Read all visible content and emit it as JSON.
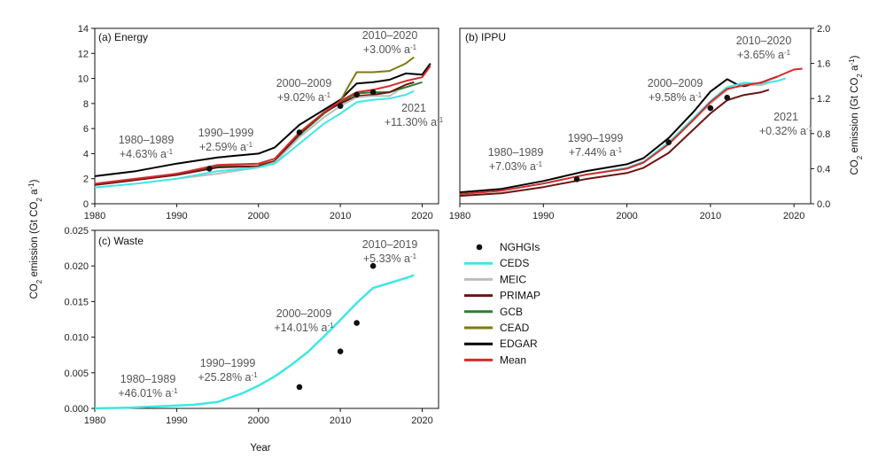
{
  "colors": {
    "NGHGIs": "#111111",
    "CEDS": "#3ee6e6",
    "MEIC": "#bdbdbd",
    "PRIMAP": "#6b1414",
    "GCB": "#2e7d32",
    "CEAD": "#7d7a10",
    "EDGAR": "#000000",
    "Mean": "#d62a2a"
  },
  "legend": [
    "NGHGIs",
    "CEDS",
    "MEIC",
    "PRIMAP",
    "GCB",
    "CEAD",
    "EDGAR",
    "Mean"
  ],
  "axis_labels": {
    "left_prefix": "CO",
    "left_sub": "2",
    "left_mid": " emission (Gt CO",
    "left_sub2": "2",
    "left_unit": " a",
    "left_sup": "-1",
    "left_end": ")",
    "right_prefix": "CO",
    "right_sub": "2",
    "right_mid": " emission (Gt CO",
    "right_sub2": "2",
    "right_unit": " a",
    "right_sup": "-1",
    "right_end": ")",
    "x": "Year"
  },
  "chart_data": [
    {
      "id": "energy",
      "type": "line",
      "title": "(a) Energy",
      "xlim": [
        1980,
        2022
      ],
      "ylim": [
        0,
        14
      ],
      "xticks": [
        1980,
        1990,
        2000,
        2010,
        2020
      ],
      "yticks": [
        "0",
        "2",
        "4",
        "6",
        "8",
        "10",
        "12",
        "14"
      ],
      "annotations": [
        {
          "line1": "1980–1989",
          "line2": "+4.63% a",
          "sup": "-1"
        },
        {
          "line1": "1990–1999",
          "line2": "+2.59% a",
          "sup": "-1"
        },
        {
          "line1": "2000–2009",
          "line2": "+9.02% a",
          "sup": "-1"
        },
        {
          "line1": "2010–2020",
          "line2": "+3.00% a",
          "sup": "-1"
        },
        {
          "line1": "2021",
          "line2": "+11.30% a",
          "sup": "-1"
        }
      ],
      "series": [
        {
          "name": "EDGAR",
          "x": [
            1980,
            1985,
            1990,
            1995,
            2000,
            2002,
            2005,
            2008,
            2010,
            2012,
            2014,
            2016,
            2018,
            2020,
            2021
          ],
          "values": [
            2.2,
            2.6,
            3.2,
            3.7,
            4.0,
            4.5,
            6.3,
            7.5,
            8.3,
            9.6,
            9.7,
            9.9,
            10.4,
            10.3,
            11.2
          ]
        },
        {
          "name": "CEAD",
          "x": [
            2000,
            2002,
            2005,
            2008,
            2010,
            2011,
            2012,
            2014,
            2016,
            2018,
            2019
          ],
          "values": [
            3.1,
            3.4,
            5.6,
            7.2,
            8.2,
            9.4,
            10.5,
            10.5,
            10.6,
            11.2,
            11.7
          ]
        },
        {
          "name": "GCB",
          "x": [
            1980,
            1985,
            1990,
            1995,
            2000,
            2002,
            2005,
            2008,
            2010,
            2012,
            2014,
            2016,
            2018,
            2020
          ],
          "values": [
            1.5,
            1.9,
            2.4,
            3.0,
            3.0,
            3.4,
            5.5,
            7.2,
            8.1,
            8.8,
            8.9,
            8.9,
            9.3,
            9.7
          ]
        },
        {
          "name": "PRIMAP",
          "x": [
            1980,
            1985,
            1990,
            1995,
            2000,
            2002,
            2005,
            2008,
            2010,
            2012,
            2014,
            2016,
            2018,
            2019
          ],
          "values": [
            1.5,
            1.9,
            2.3,
            2.9,
            3.0,
            3.4,
            5.6,
            7.3,
            8.0,
            8.6,
            8.7,
            8.9,
            9.5,
            9.7
          ]
        },
        {
          "name": "MEIC",
          "x": [
            1990,
            1995,
            2000,
            2002,
            2005,
            2008,
            2010,
            2012,
            2014,
            2016,
            2017
          ],
          "values": [
            2.0,
            2.4,
            2.9,
            3.3,
            5.3,
            6.9,
            7.8,
            8.5,
            8.6,
            8.6,
            9.0
          ]
        },
        {
          "name": "CEDS",
          "x": [
            1980,
            1985,
            1990,
            1995,
            2000,
            2002,
            2005,
            2008,
            2010,
            2012,
            2014,
            2016,
            2018,
            2019
          ],
          "values": [
            1.3,
            1.6,
            2.0,
            2.6,
            2.9,
            3.2,
            4.8,
            6.4,
            7.2,
            8.1,
            8.3,
            8.4,
            8.7,
            9.0
          ]
        },
        {
          "name": "Mean",
          "x": [
            1980,
            1985,
            1990,
            1995,
            2000,
            2002,
            2005,
            2008,
            2010,
            2012,
            2014,
            2016,
            2018,
            2020,
            2021
          ],
          "values": [
            1.6,
            2.0,
            2.4,
            3.1,
            3.2,
            3.6,
            5.7,
            7.3,
            8.2,
            8.9,
            9.1,
            9.4,
            9.8,
            10.1,
            11.0
          ]
        }
      ],
      "ngh_points": [
        [
          1994,
          2.8
        ],
        [
          2005,
          5.7
        ],
        [
          2010,
          7.8
        ],
        [
          2012,
          8.7
        ],
        [
          2014,
          8.9
        ]
      ]
    },
    {
      "id": "ippu",
      "type": "line",
      "title": "(b) IPPU",
      "xlim": [
        1980,
        2022
      ],
      "ylim": [
        0,
        2.0
      ],
      "xticks": [
        1980,
        1990,
        2000,
        2010,
        2020
      ],
      "yticks": [
        "0.0",
        "0.4",
        "0.8",
        "1.2",
        "1.6",
        "2.0"
      ],
      "annotations": [
        {
          "line1": "1980–1989",
          "line2": "+7.03% a",
          "sup": "-1"
        },
        {
          "line1": "1990–1999",
          "line2": "+7.44% a",
          "sup": "-1"
        },
        {
          "line1": "2000–2009",
          "line2": "+9.58% a",
          "sup": "-1"
        },
        {
          "line1": "2010–2020",
          "line2": "+3.65% a",
          "sup": "-1"
        },
        {
          "line1": "2021",
          "line2": "+0.32% a",
          "sup": "-1"
        }
      ],
      "series": [
        {
          "name": "EDGAR",
          "x": [
            1980,
            1985,
            1990,
            1995,
            2000,
            2002,
            2005,
            2008,
            2010,
            2012,
            2013,
            2014,
            2016,
            2018
          ],
          "values": [
            0.13,
            0.17,
            0.26,
            0.37,
            0.45,
            0.52,
            0.75,
            1.05,
            1.28,
            1.42,
            1.37,
            1.34,
            1.38,
            1.45
          ]
        },
        {
          "name": "CEDS",
          "x": [
            1980,
            1985,
            1990,
            1995,
            2000,
            2002,
            2005,
            2008,
            2010,
            2012,
            2014,
            2016,
            2018,
            2019
          ],
          "values": [
            0.11,
            0.15,
            0.23,
            0.33,
            0.41,
            0.48,
            0.7,
            0.98,
            1.17,
            1.33,
            1.38,
            1.37,
            1.4,
            1.43
          ]
        },
        {
          "name": "MEIC",
          "x": [
            2005,
            2008,
            2010,
            2012,
            2014,
            2016,
            2017
          ],
          "values": [
            0.68,
            0.96,
            1.14,
            1.3,
            1.36,
            1.35,
            1.38
          ]
        },
        {
          "name": "PRIMAP",
          "x": [
            1980,
            1985,
            1990,
            1995,
            2000,
            2002,
            2005,
            2008,
            2010,
            2012,
            2014,
            2016,
            2017
          ],
          "values": [
            0.09,
            0.12,
            0.19,
            0.28,
            0.35,
            0.41,
            0.58,
            0.85,
            1.03,
            1.18,
            1.24,
            1.27,
            1.3
          ]
        },
        {
          "name": "Mean",
          "x": [
            1980,
            1985,
            1990,
            1995,
            2000,
            2002,
            2005,
            2008,
            2010,
            2012,
            2014,
            2016,
            2018,
            2020,
            2021
          ],
          "values": [
            0.11,
            0.15,
            0.23,
            0.33,
            0.4,
            0.47,
            0.68,
            0.96,
            1.16,
            1.31,
            1.35,
            1.38,
            1.45,
            1.53,
            1.54
          ]
        }
      ],
      "ngh_points": [
        [
          1994,
          0.28
        ],
        [
          2005,
          0.7
        ],
        [
          2010,
          1.09
        ],
        [
          2012,
          1.21
        ]
      ]
    },
    {
      "id": "waste",
      "type": "line",
      "title": "(c) Waste",
      "xlim": [
        1980,
        2022
      ],
      "ylim": [
        0,
        0.025
      ],
      "xticks": [
        1980,
        1990,
        2000,
        2010,
        2020
      ],
      "yticks": [
        "0.000",
        "0.005",
        "0.010",
        "0.015",
        "0.020",
        "0.025"
      ],
      "annotations": [
        {
          "line1": "1980–1989",
          "line2": "+46.01% a",
          "sup": "-1"
        },
        {
          "line1": "1990–1999",
          "line2": "+25.28% a",
          "sup": "-1"
        },
        {
          "line1": "2000–2009",
          "line2": "+14.01% a",
          "sup": "-1"
        },
        {
          "line1": "2010–2019",
          "line2": "+5.33% a",
          "sup": "-1"
        }
      ],
      "series": [
        {
          "name": "CEDS",
          "x": [
            1980,
            1984,
            1988,
            1992,
            1995,
            1998,
            2000,
            2002,
            2004,
            2006,
            2008,
            2010,
            2012,
            2014,
            2016,
            2018,
            2019
          ],
          "values": [
            0.0,
            0.0001,
            0.0003,
            0.0005,
            0.0009,
            0.0021,
            0.0032,
            0.0045,
            0.0061,
            0.0079,
            0.0101,
            0.0124,
            0.0148,
            0.0169,
            0.0176,
            0.0183,
            0.0187
          ]
        }
      ],
      "ngh_points": [
        [
          2005,
          0.003
        ],
        [
          2010,
          0.008
        ],
        [
          2012,
          0.012
        ],
        [
          2014,
          0.02
        ]
      ]
    }
  ]
}
